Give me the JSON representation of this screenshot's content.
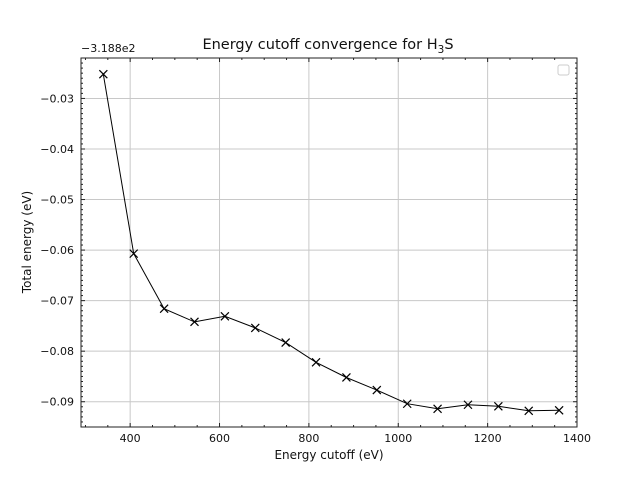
{
  "chart_data": {
    "type": "line",
    "title_main": "Energy cutoff convergence for H",
    "title_sub": "3",
    "title_end": "S",
    "xlabel": "Energy cutoff (eV)",
    "ylabel": "Total energy (eV)",
    "y_offset_label": "−3.188e2",
    "xlim": [
      290,
      1400
    ],
    "ylim": [
      -0.095,
      -0.022
    ],
    "xticks": [
      400,
      600,
      800,
      1000,
      1200,
      1400
    ],
    "xtick_labels": [
      "400",
      "600",
      "800",
      "1000",
      "1200",
      "1400"
    ],
    "yticks": [
      -0.09,
      -0.08,
      -0.07,
      -0.06,
      -0.05,
      -0.04,
      -0.03
    ],
    "ytick_labels": [
      "−0.09",
      "−0.08",
      "−0.07",
      "−0.06",
      "−0.05",
      "−0.04",
      "−0.03"
    ],
    "grid": true,
    "legend": "top-right (empty)",
    "series": [
      {
        "marker": "x",
        "color": "#000000",
        "x": [
          340,
          408,
          476,
          544,
          612,
          680,
          748,
          816,
          884,
          952,
          1020,
          1088,
          1156,
          1224,
          1292,
          1360
        ],
        "y": [
          -0.0252,
          -0.0607,
          -0.0716,
          -0.0742,
          -0.0731,
          -0.0754,
          -0.0783,
          -0.0822,
          -0.0852,
          -0.0877,
          -0.0904,
          -0.0914,
          -0.0906,
          -0.0909,
          -0.0918,
          -0.0917
        ]
      }
    ]
  }
}
